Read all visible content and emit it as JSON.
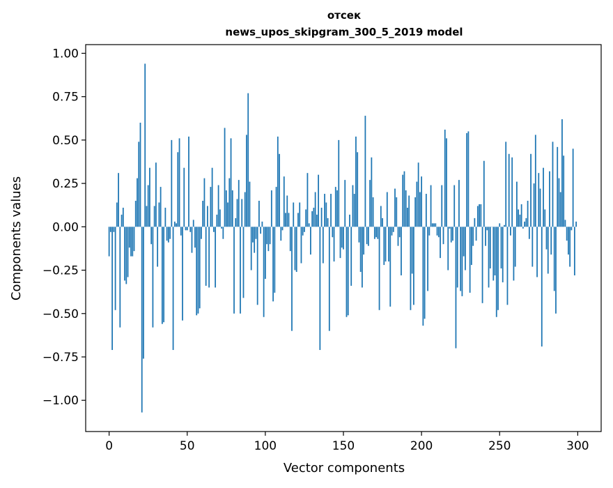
{
  "chart_data": {
    "type": "bar",
    "title": "отсек",
    "subtitle": "news_upos_skipgram_300_5_2019 model",
    "xlabel": "Vector components",
    "ylabel": "Components values",
    "xlim": [
      -15,
      315
    ],
    "ylim": [
      -1.18,
      1.05
    ],
    "xticks": [
      0,
      50,
      100,
      150,
      200,
      250,
      300
    ],
    "yticks": [
      1.0,
      0.75,
      0.5,
      0.25,
      0.0,
      -0.25,
      -0.5,
      -0.75,
      -1.0
    ],
    "ytick_labels": [
      "1.00",
      "0.75",
      "0.50",
      "0.25",
      "0.00",
      "−0.25",
      "−0.50",
      "−0.75",
      "−1.00"
    ],
    "xtick_labels": [
      "0",
      "50",
      "100",
      "150",
      "200",
      "250",
      "300"
    ],
    "bar_color": "#1f77b4",
    "values": [
      -0.17,
      -0.03,
      -0.71,
      -0.03,
      -0.48,
      0.14,
      0.31,
      -0.58,
      0.07,
      0.11,
      -0.31,
      -0.33,
      -0.29,
      -0.12,
      -0.17,
      -0.17,
      -0.14,
      0.15,
      0.28,
      0.49,
      0.6,
      -1.07,
      -0.76,
      0.94,
      0.12,
      0.24,
      0.34,
      -0.1,
      -0.58,
      0.12,
      0.37,
      -0.23,
      0.14,
      0.23,
      -0.56,
      -0.55,
      0.11,
      -0.08,
      -0.09,
      -0.07,
      0.5,
      -0.71,
      0.03,
      0.02,
      0.43,
      0.51,
      -0.05,
      -0.54,
      0.34,
      -0.02,
      -0.02,
      0.52,
      -0.03,
      -0.15,
      0.04,
      -0.12,
      -0.51,
      -0.5,
      -0.47,
      -0.07,
      0.15,
      0.28,
      -0.34,
      0.12,
      -0.35,
      0.23,
      0.34,
      -0.03,
      -0.35,
      0.07,
      0.24,
      0.1,
      -0.01,
      -0.07,
      0.57,
      0.21,
      0.14,
      0.28,
      0.51,
      0.21,
      -0.5,
      0.05,
      0.16,
      0.27,
      -0.5,
      0.16,
      -0.41,
      0.2,
      0.53,
      0.77,
      0.26,
      -0.25,
      -0.09,
      -0.15,
      -0.07,
      -0.45,
      0.15,
      -0.04,
      0.03,
      -0.52,
      -0.3,
      -0.1,
      -0.14,
      -0.1,
      0.21,
      -0.43,
      -0.38,
      0.23,
      0.52,
      0.42,
      -0.08,
      -0.02,
      0.29,
      0.08,
      0.18,
      0.08,
      -0.14,
      -0.6,
      0.14,
      -0.25,
      -0.26,
      0.08,
      0.14,
      -0.21,
      -0.05,
      -0.03,
      0.1,
      0.31,
      0.02,
      -0.16,
      0.09,
      0.11,
      0.2,
      0.07,
      0.3,
      -0.71,
      0.11,
      -0.21,
      0.19,
      0.14,
      0.05,
      -0.6,
      0.19,
      -0.06,
      -0.2,
      0.23,
      0.21,
      0.5,
      -0.18,
      -0.12,
      -0.13,
      0.27,
      -0.52,
      -0.51,
      0.07,
      -0.34,
      0.24,
      0.19,
      0.52,
      0.43,
      -0.09,
      -0.26,
      -0.35,
      -0.16,
      0.64,
      -0.1,
      -0.11,
      0.27,
      0.4,
      0.17,
      -0.07,
      -0.06,
      -0.07,
      -0.48,
      0.12,
      0.05,
      -0.22,
      -0.2,
      0.2,
      -0.2,
      -0.46,
      -0.05,
      -0.03,
      0.22,
      0.17,
      -0.11,
      -0.06,
      -0.28,
      0.3,
      0.32,
      0.21,
      0.11,
      0.18,
      -0.48,
      -0.27,
      -0.45,
      0.17,
      0.26,
      0.37,
      0.2,
      0.29,
      -0.57,
      -0.53,
      0.19,
      -0.37,
      -0.05,
      0.24,
      0.02,
      0.02,
      0.02,
      -0.05,
      -0.06,
      -0.18,
      0.24,
      -0.1,
      0.56,
      0.51,
      -0.25,
      -0.01,
      -0.09,
      -0.08,
      0.24,
      -0.7,
      -0.35,
      0.27,
      -0.37,
      -0.4,
      -0.17,
      -0.25,
      0.54,
      0.55,
      -0.38,
      -0.22,
      -0.11,
      0.05,
      -0.08,
      0.12,
      0.13,
      0.13,
      -0.44,
      0.38,
      -0.11,
      -0.02,
      -0.35,
      -0.24,
      0.0,
      -0.31,
      -0.28,
      -0.52,
      -0.48,
      0.02,
      -0.24,
      -0.32,
      0.01,
      0.49,
      -0.45,
      0.42,
      -0.05,
      0.4,
      -0.31,
      -0.23,
      0.26,
      0.1,
      0.07,
      0.13,
      -0.01,
      0.03,
      0.05,
      0.15,
      -0.07,
      0.42,
      -0.23,
      0.25,
      0.53,
      -0.29,
      0.31,
      0.22,
      -0.69,
      0.34,
      0.1,
      -0.13,
      -0.27,
      0.32,
      -0.16,
      0.49,
      -0.37,
      -0.5,
      0.46,
      0.28,
      0.2,
      0.62,
      0.41,
      0.04,
      -0.08,
      -0.16,
      -0.23,
      -0.02,
      0.45,
      -0.28,
      0.03
    ]
  }
}
